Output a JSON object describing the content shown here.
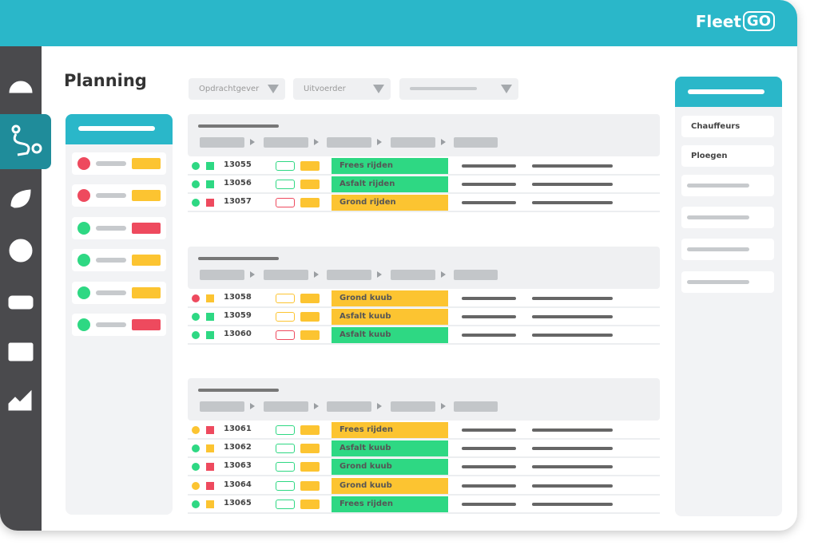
{
  "logo": {
    "text": "Fleet",
    "badge": "GO"
  },
  "title": "Planning",
  "filters": [
    "Opdrachtgever",
    "Uitvoerder"
  ],
  "groups": [
    {
      "rows": [
        {
          "id": 13055,
          "task": "Frees rijden",
          "dot": "#2ed883",
          "square": "#2ed883",
          "outline": "#2ed883",
          "color": "#2ed883"
        },
        {
          "id": 13056,
          "task": "Asfalt rijden",
          "dot": "#2ed883",
          "square": "#2ed883",
          "outline": "#2ed883",
          "color": "#2ed883"
        },
        {
          "id": 13057,
          "task": "Grond rijden",
          "dot": "#2ed883",
          "square": "#ee4a5e",
          "outline": "#ee4a5e",
          "color": "#fcc431"
        }
      ]
    },
    {
      "rows": [
        {
          "id": 13058,
          "task": "Grond kuub",
          "dot": "#ee4a5e",
          "square": "#fcc431",
          "outline": "#fcc431",
          "color": "#fcc431"
        },
        {
          "id": 13059,
          "task": "Asfalt kuub",
          "dot": "#2ed883",
          "square": "#2ed883",
          "outline": "#fcc431",
          "color": "#fcc431"
        },
        {
          "id": 13060,
          "task": "Asfalt kuub",
          "dot": "#2ed883",
          "square": "#2ed883",
          "outline": "#ee4a5e",
          "color": "#2ed883"
        }
      ]
    },
    {
      "rows": [
        {
          "id": 13061,
          "task": "Frees rijden",
          "dot": "#fcc431",
          "square": "#ee4a5e",
          "outline": "#2ed883",
          "color": "#fcc431"
        },
        {
          "id": 13062,
          "task": "Asfalt kuub",
          "dot": "#2ed883",
          "square": "#fcc431",
          "outline": "#2ed883",
          "color": "#2ed883"
        },
        {
          "id": 13063,
          "task": "Grond kuub",
          "dot": "#2ed883",
          "square": "#ee4a5e",
          "outline": "#2ed883",
          "color": "#2ed883"
        },
        {
          "id": 13064,
          "task": "Grond kuub",
          "dot": "#fcc431",
          "square": "#ee4a5e",
          "outline": "#2ed883",
          "color": "#fcc431"
        },
        {
          "id": 13065,
          "task": "Frees rijden",
          "dot": "#2ed883",
          "square": "#fcc431",
          "outline": "#2ed883",
          "color": "#2ed883"
        }
      ]
    }
  ],
  "side_panel": [
    "Chauffeurs",
    "Ploegen"
  ]
}
